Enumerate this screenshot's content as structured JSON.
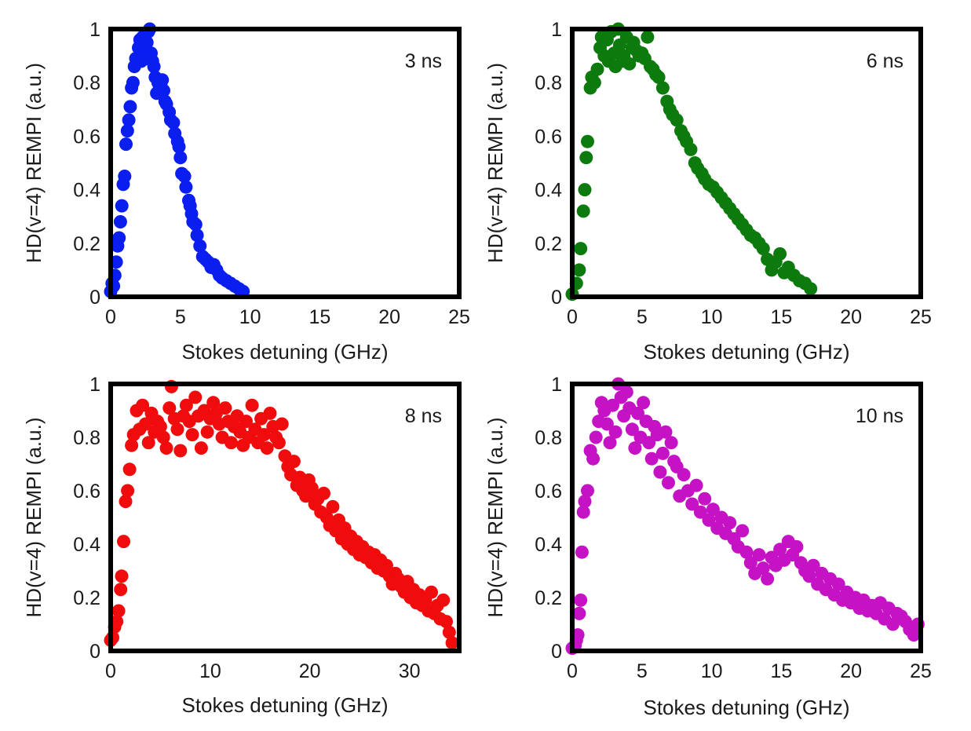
{
  "chart_data": [
    {
      "type": "scatter",
      "annotation": "3 ns",
      "xlabel": "Stokes detuning (GHz)",
      "ylabel": "HD(v=4) REMPI (a.u.)",
      "xlim": [
        0,
        25
      ],
      "ylim": [
        0,
        1
      ],
      "xticks": [
        "0",
        "5",
        "10",
        "15",
        "20",
        "25"
      ],
      "yticks": [
        "0",
        "0.2",
        "0.4",
        "0.6",
        "0.8",
        "1"
      ],
      "grid": false,
      "color": "#0a1ef0",
      "series": [
        {
          "x": [
            0.0,
            0.1,
            0.2,
            0.3,
            0.4,
            0.5,
            0.6,
            0.7,
            0.8,
            0.9,
            1.0,
            1.1,
            1.2,
            1.3,
            1.4,
            1.5,
            1.6,
            1.7,
            1.8,
            2.0,
            2.1,
            2.2,
            2.3,
            2.4,
            2.5,
            2.6,
            2.7,
            2.8,
            2.9,
            3.0,
            3.1,
            3.2,
            3.3,
            3.4,
            3.5,
            3.6,
            3.7,
            3.8,
            3.9,
            4.0,
            4.2,
            4.3,
            4.5,
            4.6,
            4.8,
            4.9,
            5.0,
            5.1,
            5.3,
            5.4,
            5.6,
            5.7,
            5.8,
            5.9,
            6.1,
            6.2,
            6.4,
            6.6,
            6.8,
            7.0,
            7.2,
            7.4,
            7.6,
            7.8,
            8.0,
            8.3,
            8.6,
            8.9,
            9.2,
            9.5
          ],
          "y": [
            0.02,
            0.05,
            0.04,
            0.08,
            0.13,
            0.19,
            0.22,
            0.28,
            0.34,
            0.42,
            0.45,
            0.57,
            0.62,
            0.66,
            0.71,
            0.78,
            0.8,
            0.86,
            0.89,
            0.93,
            0.96,
            0.88,
            0.97,
            0.93,
            0.89,
            0.95,
            0.99,
            1.0,
            0.91,
            0.88,
            0.86,
            0.82,
            0.76,
            0.8,
            0.78,
            0.79,
            0.81,
            0.77,
            0.73,
            0.72,
            0.69,
            0.66,
            0.65,
            0.61,
            0.58,
            0.56,
            0.52,
            0.46,
            0.45,
            0.41,
            0.36,
            0.34,
            0.31,
            0.28,
            0.27,
            0.23,
            0.19,
            0.15,
            0.14,
            0.13,
            0.11,
            0.12,
            0.1,
            0.08,
            0.07,
            0.06,
            0.05,
            0.04,
            0.03,
            0.02
          ]
        }
      ]
    },
    {
      "type": "scatter",
      "annotation": "6 ns",
      "xlabel": "Stokes detuning (GHz)",
      "ylabel": "HD(v=4) REMPI (a.u.)",
      "xlim": [
        0,
        25
      ],
      "ylim": [
        0,
        1
      ],
      "xticks": [
        "0",
        "5",
        "10",
        "15",
        "20",
        "25"
      ],
      "yticks": [
        "0",
        "0.2",
        "0.4",
        "0.6",
        "0.8",
        "1"
      ],
      "grid": false,
      "color": "#0d7a0d",
      "series": [
        {
          "x": [
            0.0,
            0.3,
            0.5,
            0.6,
            0.8,
            0.9,
            1.0,
            1.1,
            1.3,
            1.4,
            1.6,
            1.8,
            2.0,
            2.1,
            2.3,
            2.5,
            2.6,
            2.8,
            3.0,
            3.1,
            3.3,
            3.4,
            3.6,
            3.7,
            3.9,
            4.1,
            4.3,
            4.4,
            4.6,
            4.8,
            5.0,
            5.2,
            5.4,
            5.6,
            5.8,
            6.0,
            6.2,
            6.5,
            6.8,
            7.0,
            7.2,
            7.5,
            7.8,
            8.0,
            8.2,
            8.5,
            8.8,
            9.0,
            9.3,
            9.5,
            9.8,
            10.1,
            10.4,
            10.7,
            11.0,
            11.3,
            11.6,
            11.9,
            12.2,
            12.5,
            12.8,
            13.1,
            13.4,
            13.7,
            14.0,
            14.3,
            14.6,
            14.9,
            15.2,
            15.5,
            15.9,
            16.3,
            16.7,
            17.1
          ],
          "y": [
            0.01,
            0.05,
            0.1,
            0.18,
            0.32,
            0.4,
            0.52,
            0.58,
            0.78,
            0.82,
            0.8,
            0.85,
            0.93,
            0.97,
            0.9,
            0.96,
            0.88,
            0.99,
            0.91,
            0.86,
            1.0,
            0.94,
            0.88,
            0.9,
            0.97,
            0.87,
            0.93,
            0.95,
            0.92,
            0.9,
            0.91,
            0.89,
            0.97,
            0.86,
            0.85,
            0.83,
            0.82,
            0.78,
            0.73,
            0.7,
            0.68,
            0.66,
            0.62,
            0.6,
            0.58,
            0.55,
            0.5,
            0.48,
            0.46,
            0.44,
            0.42,
            0.41,
            0.39,
            0.37,
            0.35,
            0.33,
            0.31,
            0.29,
            0.27,
            0.25,
            0.23,
            0.22,
            0.2,
            0.18,
            0.14,
            0.1,
            0.13,
            0.16,
            0.09,
            0.11,
            0.08,
            0.06,
            0.05,
            0.03
          ]
        }
      ]
    },
    {
      "type": "scatter",
      "annotation": "8 ns",
      "xlabel": "Stokes detuning (GHz)",
      "ylabel": "HD(v=4) REMPI (a.u.)",
      "xlim": [
        0,
        35
      ],
      "ylim": [
        0,
        1
      ],
      "xticks": [
        "0",
        "10",
        "20",
        "30"
      ],
      "yticks": [
        "0",
        "0.2",
        "0.4",
        "0.6",
        "0.8",
        "1"
      ],
      "grid": false,
      "color": "#f00c0c",
      "series": [
        {
          "x": [
            0.0,
            0.2,
            0.4,
            0.6,
            0.8,
            1.0,
            1.1,
            1.3,
            1.5,
            1.7,
            1.9,
            2.1,
            2.3,
            2.6,
            2.9,
            3.2,
            3.5,
            3.8,
            4.1,
            4.4,
            4.7,
            5.0,
            5.3,
            5.6,
            5.9,
            6.1,
            6.4,
            6.7,
            7.0,
            7.3,
            7.6,
            7.9,
            8.2,
            8.5,
            8.8,
            9.1,
            9.4,
            9.7,
            10.0,
            10.3,
            10.6,
            10.9,
            11.2,
            11.5,
            11.8,
            12.1,
            12.4,
            12.7,
            13.0,
            13.3,
            13.6,
            13.9,
            14.2,
            14.5,
            14.8,
            15.1,
            15.4,
            15.7,
            16.0,
            16.3,
            16.6,
            16.9,
            17.2,
            17.5,
            17.8,
            18.1,
            18.4,
            18.7,
            19.0,
            19.3,
            19.6,
            19.9,
            20.2,
            20.5,
            20.8,
            21.1,
            21.4,
            21.7,
            22.0,
            22.3,
            22.6,
            22.9,
            23.2,
            23.5,
            23.8,
            24.1,
            24.4,
            24.7,
            25.0,
            25.3,
            25.6,
            25.9,
            26.2,
            26.5,
            26.8,
            27.1,
            27.4,
            27.7,
            28.0,
            28.3,
            28.6,
            28.9,
            29.2,
            29.5,
            29.8,
            30.1,
            30.4,
            30.7,
            31.0,
            31.3,
            31.6,
            31.9,
            32.2,
            32.5,
            32.8,
            33.1,
            33.4,
            33.7,
            34.0,
            34.3
          ],
          "y": [
            0.04,
            0.05,
            0.09,
            0.11,
            0.15,
            0.23,
            0.28,
            0.41,
            0.56,
            0.6,
            0.68,
            0.77,
            0.81,
            0.9,
            0.83,
            0.92,
            0.85,
            0.78,
            0.89,
            0.82,
            0.86,
            0.84,
            0.8,
            0.76,
            0.91,
            0.99,
            0.87,
            0.83,
            0.75,
            0.88,
            0.92,
            0.86,
            0.81,
            0.95,
            0.88,
            0.76,
            0.9,
            0.82,
            0.87,
            0.93,
            0.89,
            0.85,
            0.8,
            0.91,
            0.86,
            0.78,
            0.84,
            0.88,
            0.82,
            0.77,
            0.86,
            0.8,
            0.92,
            0.83,
            0.78,
            0.87,
            0.81,
            0.76,
            0.89,
            0.84,
            0.8,
            0.78,
            0.85,
            0.73,
            0.69,
            0.66,
            0.71,
            0.62,
            0.65,
            0.6,
            0.58,
            0.64,
            0.61,
            0.55,
            0.57,
            0.52,
            0.59,
            0.5,
            0.47,
            0.54,
            0.45,
            0.49,
            0.42,
            0.46,
            0.4,
            0.43,
            0.38,
            0.41,
            0.36,
            0.39,
            0.35,
            0.37,
            0.33,
            0.36,
            0.31,
            0.34,
            0.3,
            0.32,
            0.28,
            0.25,
            0.29,
            0.27,
            0.24,
            0.22,
            0.26,
            0.2,
            0.23,
            0.18,
            0.21,
            0.17,
            0.19,
            0.15,
            0.22,
            0.14,
            0.17,
            0.12,
            0.19,
            0.11,
            0.07,
            0.03
          ]
        }
      ]
    },
    {
      "type": "scatter",
      "annotation": "10 ns",
      "xlabel": "Stokes detuning (GHz)",
      "ylabel": "HD(v=4) REMPI (a.u.)",
      "xlim": [
        0,
        25
      ],
      "ylim": [
        0,
        1
      ],
      "xticks": [
        "0",
        "5",
        "10",
        "15",
        "20",
        "25"
      ],
      "yticks": [
        "0",
        "0.2",
        "0.4",
        "0.6",
        "0.8",
        "1"
      ],
      "grid": false,
      "color": "#c412c4",
      "series": [
        {
          "x": [
            0.0,
            0.2,
            0.3,
            0.4,
            0.5,
            0.6,
            0.7,
            0.8,
            0.9,
            1.1,
            1.3,
            1.5,
            1.7,
            1.9,
            2.1,
            2.3,
            2.5,
            2.7,
            2.9,
            3.1,
            3.3,
            3.5,
            3.7,
            3.9,
            4.1,
            4.3,
            4.5,
            4.7,
            4.9,
            5.1,
            5.3,
            5.5,
            5.7,
            5.9,
            6.1,
            6.3,
            6.5,
            6.7,
            6.9,
            7.1,
            7.3,
            7.5,
            7.7,
            8.0,
            8.3,
            8.6,
            8.9,
            9.2,
            9.5,
            9.8,
            10.1,
            10.4,
            10.7,
            11.0,
            11.3,
            11.6,
            11.9,
            12.2,
            12.5,
            12.8,
            13.1,
            13.4,
            13.7,
            14.0,
            14.3,
            14.6,
            14.9,
            15.2,
            15.5,
            15.8,
            16.1,
            16.4,
            16.7,
            17.0,
            17.3,
            17.6,
            17.9,
            18.2,
            18.5,
            18.8,
            19.1,
            19.4,
            19.7,
            20.0,
            20.3,
            20.6,
            20.9,
            21.2,
            21.5,
            21.8,
            22.1,
            22.4,
            22.7,
            23.0,
            23.3,
            23.6,
            23.9,
            24.2,
            24.5,
            24.8
          ],
          "y": [
            0.01,
            0.02,
            0.04,
            0.06,
            0.14,
            0.19,
            0.37,
            0.52,
            0.56,
            0.6,
            0.75,
            0.72,
            0.8,
            0.86,
            0.93,
            0.9,
            0.85,
            0.78,
            0.92,
            0.82,
            1.0,
            0.95,
            0.88,
            0.97,
            0.91,
            0.83,
            0.76,
            0.89,
            0.8,
            0.93,
            0.86,
            0.78,
            0.72,
            0.84,
            0.81,
            0.67,
            0.74,
            0.82,
            0.63,
            0.78,
            0.71,
            0.69,
            0.58,
            0.66,
            0.6,
            0.55,
            0.62,
            0.52,
            0.57,
            0.49,
            0.53,
            0.46,
            0.5,
            0.44,
            0.48,
            0.42,
            0.39,
            0.45,
            0.37,
            0.33,
            0.29,
            0.36,
            0.31,
            0.27,
            0.35,
            0.32,
            0.38,
            0.34,
            0.41,
            0.36,
            0.39,
            0.33,
            0.3,
            0.28,
            0.32,
            0.25,
            0.29,
            0.23,
            0.27,
            0.21,
            0.25,
            0.19,
            0.22,
            0.18,
            0.2,
            0.16,
            0.19,
            0.15,
            0.17,
            0.14,
            0.18,
            0.12,
            0.16,
            0.1,
            0.14,
            0.13,
            0.11,
            0.08,
            0.06,
            0.1
          ]
        }
      ]
    }
  ]
}
